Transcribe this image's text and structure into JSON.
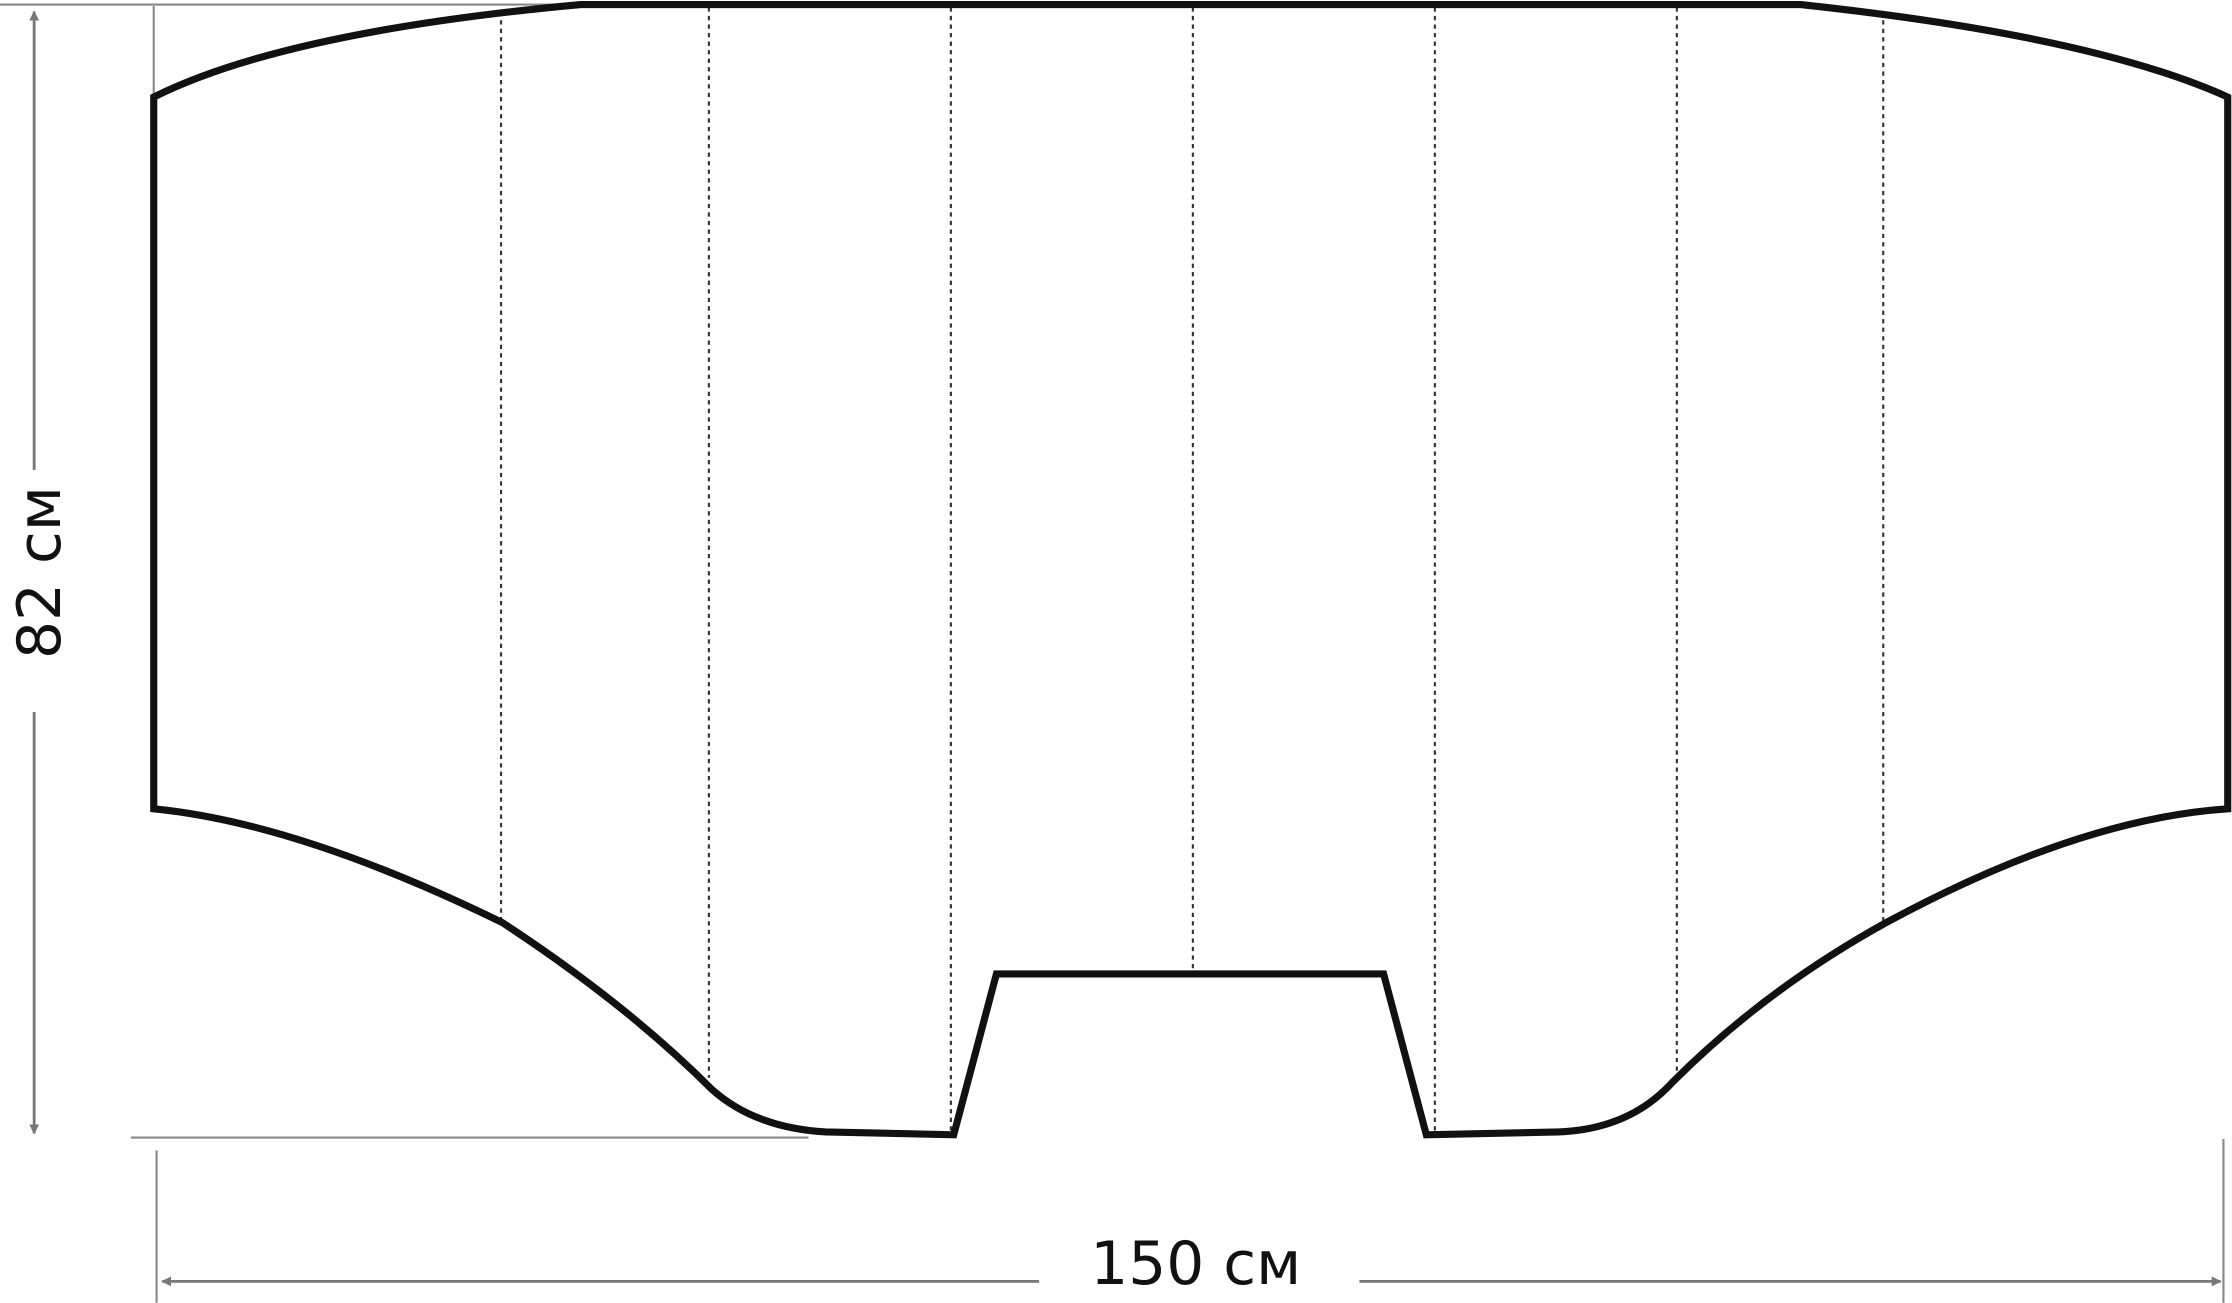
{
  "diagram": {
    "height_label": "82 см",
    "width_label": "150 см",
    "colors": {
      "outline": "#111111",
      "dimension_lines": "#777777",
      "fold_lines": "#333333",
      "background": "#ffffff"
    }
  }
}
